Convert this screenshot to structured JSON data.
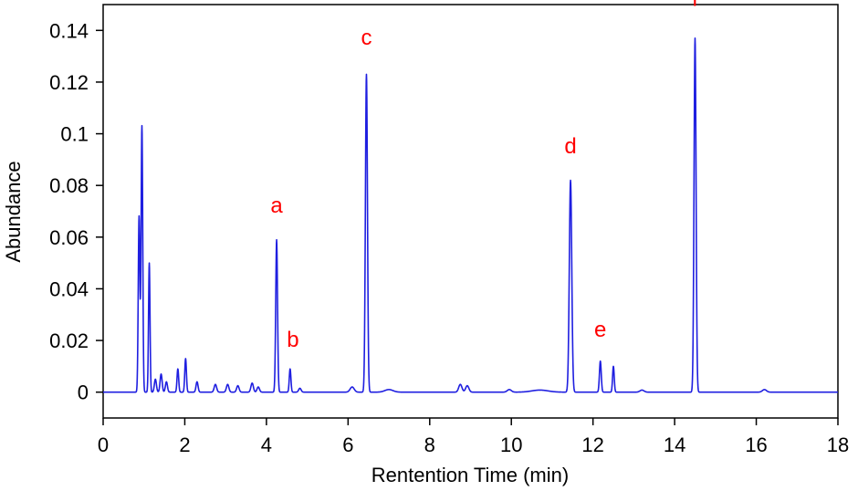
{
  "chart_data": {
    "type": "line",
    "title": "",
    "xlabel": "Rentention Time (min)",
    "ylabel": "Abundance",
    "xlim": [
      0,
      18
    ],
    "ylim": [
      -0.01,
      0.15
    ],
    "xticks": [
      0,
      2,
      4,
      6,
      8,
      10,
      12,
      14,
      16,
      18
    ],
    "yticks": [
      0,
      0.02,
      0.04,
      0.06,
      0.08,
      0.1,
      0.12,
      0.14
    ],
    "xtick_labels": [
      "0",
      "2",
      "4",
      "6",
      "8",
      "10",
      "12",
      "14",
      "16",
      "18"
    ],
    "ytick_labels": [
      "0",
      "0.02",
      "0.04",
      "0.06",
      "0.08",
      "0.1",
      "0.12",
      "0.14"
    ],
    "grid": false,
    "legend": "none",
    "line_color": "#1f1fe0",
    "label_color": "#ff0000",
    "baseline": 0,
    "peaks": [
      {
        "x": 0.88,
        "y": 0.068,
        "w": 0.02
      },
      {
        "x": 0.95,
        "y": 0.103,
        "w": 0.02
      },
      {
        "x": 1.13,
        "y": 0.05,
        "w": 0.018
      },
      {
        "x": 1.28,
        "y": 0.005,
        "w": 0.025
      },
      {
        "x": 1.42,
        "y": 0.007,
        "w": 0.025
      },
      {
        "x": 1.55,
        "y": 0.004,
        "w": 0.025
      },
      {
        "x": 1.83,
        "y": 0.009,
        "w": 0.02
      },
      {
        "x": 2.02,
        "y": 0.013,
        "w": 0.02
      },
      {
        "x": 2.3,
        "y": 0.004,
        "w": 0.025
      },
      {
        "x": 2.75,
        "y": 0.003,
        "w": 0.03
      },
      {
        "x": 3.05,
        "y": 0.003,
        "w": 0.03
      },
      {
        "x": 3.3,
        "y": 0.0025,
        "w": 0.03
      },
      {
        "x": 3.65,
        "y": 0.0035,
        "w": 0.03
      },
      {
        "x": 3.8,
        "y": 0.002,
        "w": 0.03
      },
      {
        "x": 4.25,
        "y": 0.059,
        "w": 0.022
      },
      {
        "x": 4.58,
        "y": 0.009,
        "w": 0.02
      },
      {
        "x": 4.82,
        "y": 0.0015,
        "w": 0.03
      },
      {
        "x": 6.1,
        "y": 0.002,
        "w": 0.05
      },
      {
        "x": 6.45,
        "y": 0.123,
        "w": 0.025
      },
      {
        "x": 7.0,
        "y": 0.001,
        "w": 0.1
      },
      {
        "x": 8.75,
        "y": 0.003,
        "w": 0.04
      },
      {
        "x": 8.92,
        "y": 0.0025,
        "w": 0.04
      },
      {
        "x": 9.95,
        "y": 0.001,
        "w": 0.05
      },
      {
        "x": 10.7,
        "y": 0.0008,
        "w": 0.2
      },
      {
        "x": 11.45,
        "y": 0.082,
        "w": 0.03
      },
      {
        "x": 12.18,
        "y": 0.012,
        "w": 0.022
      },
      {
        "x": 12.5,
        "y": 0.01,
        "w": 0.02
      },
      {
        "x": 13.2,
        "y": 0.0008,
        "w": 0.05
      },
      {
        "x": 14.5,
        "y": 0.137,
        "w": 0.025
      },
      {
        "x": 16.2,
        "y": 0.001,
        "w": 0.05
      }
    ],
    "annotations": [
      {
        "text": "a",
        "x": 4.25,
        "y": 0.0695
      },
      {
        "text": "b",
        "x": 4.65,
        "y": 0.0175
      },
      {
        "text": "c",
        "x": 6.45,
        "y": 0.1345
      },
      {
        "text": "d",
        "x": 11.45,
        "y": 0.0925
      },
      {
        "text": "e",
        "x": 12.18,
        "y": 0.0215
      },
      {
        "text": "f",
        "x": 14.5,
        "y": 0.1495
      }
    ]
  }
}
